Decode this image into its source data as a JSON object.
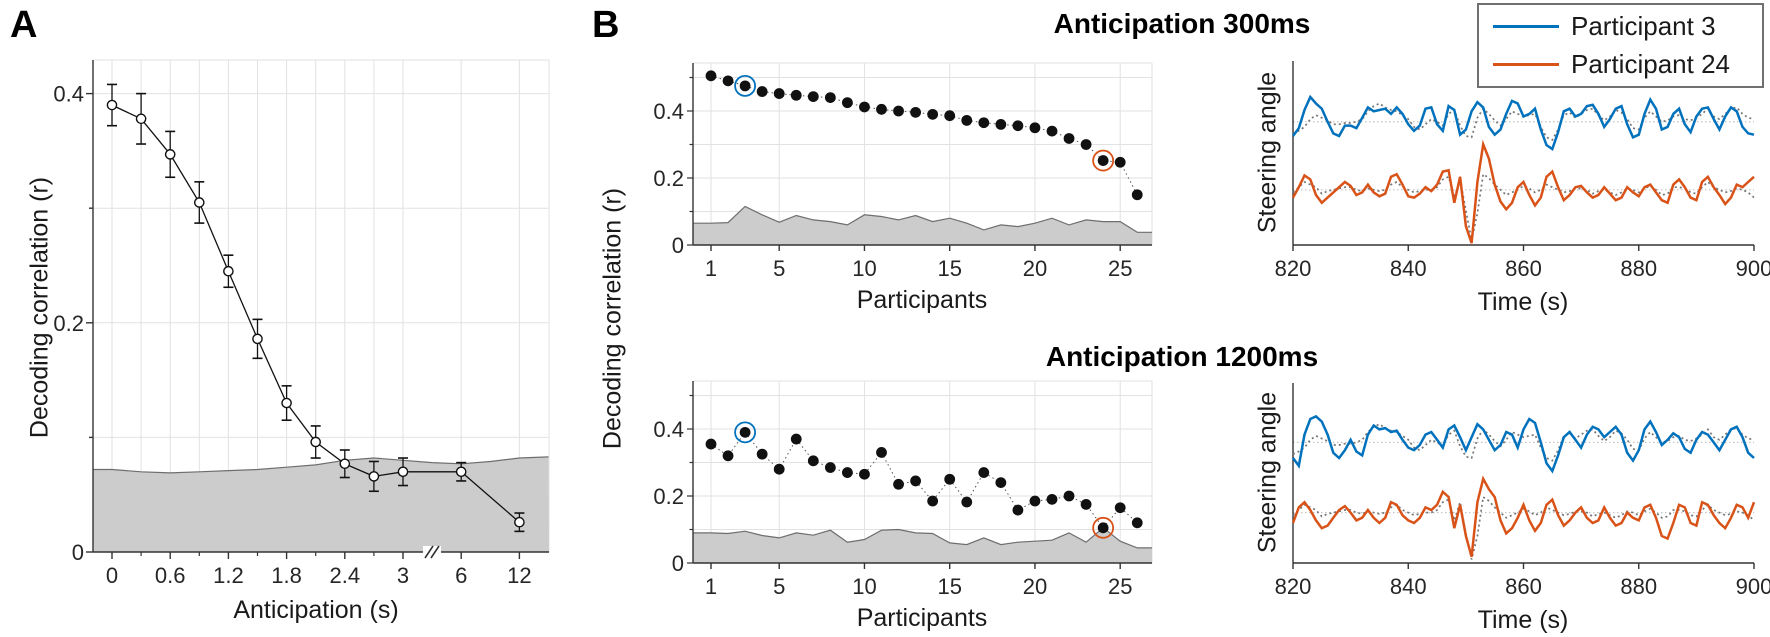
{
  "figure": {
    "panel_a_label": "A",
    "panel_b_label": "B",
    "b_shared_ylabel": "Decoding correlation (r)",
    "colors": {
      "blue": "#0072BD",
      "orange": "#D95319",
      "point_black": "#111111",
      "chance_fill": "#cccccc",
      "chance_edge": "#6e6e6e",
      "grid": "#e2e2e2",
      "axis": "#333333",
      "actual_dotted": "#757575",
      "baseline_dotted": "#c4c4c4"
    },
    "legend": {
      "items": [
        {
          "label": "Participant 3",
          "color": "#0072BD"
        },
        {
          "label": "Participant 24",
          "color": "#D95319"
        }
      ]
    }
  },
  "chart_data": [
    {
      "id": "panelA",
      "type": "line",
      "xlabel": "Anticipation (s)",
      "ylabel": "Decoding correlation (r)",
      "x": [
        0,
        0.3,
        0.6,
        0.9,
        1.2,
        1.5,
        1.8,
        2.1,
        2.4,
        2.7,
        3,
        6,
        12
      ],
      "y": [
        0.39,
        0.378,
        0.347,
        0.305,
        0.245,
        0.186,
        0.13,
        0.096,
        0.077,
        0.066,
        0.07,
        0.07,
        0.026
      ],
      "yerr": [
        0.018,
        0.022,
        0.02,
        0.018,
        0.014,
        0.017,
        0.015,
        0.014,
        0.012,
        0.013,
        0.012,
        0.008,
        0.008
      ],
      "xtick_labels": [
        "0",
        "0.6",
        "1.2",
        "1.8",
        "2.4",
        "3",
        "6",
        "12"
      ],
      "ytick_labels": [
        "0",
        "0.2",
        "0.4"
      ],
      "yticks": [
        0,
        0.2,
        0.4
      ],
      "ylim": [
        0,
        0.43
      ],
      "axis_break_between": [
        3,
        6
      ],
      "chance_u": [
        -0.196,
        0,
        0.3,
        0.6,
        0.9,
        1.2,
        1.5,
        1.8,
        2.1,
        2.4,
        2.7,
        3.0,
        3.3,
        3.6,
        3.9,
        4.2,
        4.5
      ],
      "chance_v": [
        0.072,
        0.072,
        0.07,
        0.069,
        0.07,
        0.071,
        0.072,
        0.074,
        0.076,
        0.08,
        0.082,
        0.08,
        0.078,
        0.077,
        0.079,
        0.082,
        0.083
      ]
    },
    {
      "id": "scatter300",
      "type": "scatter",
      "title": "Anticipation 300ms",
      "xlabel": "Participants",
      "x": [
        1,
        2,
        3,
        4,
        5,
        6,
        7,
        8,
        9,
        10,
        11,
        12,
        13,
        14,
        15,
        16,
        17,
        18,
        19,
        20,
        21,
        22,
        23,
        24,
        25,
        26
      ],
      "y": [
        0.505,
        0.49,
        0.475,
        0.458,
        0.452,
        0.447,
        0.443,
        0.44,
        0.425,
        0.412,
        0.405,
        0.4,
        0.396,
        0.39,
        0.386,
        0.372,
        0.365,
        0.36,
        0.356,
        0.35,
        0.34,
        0.318,
        0.3,
        0.252,
        0.247,
        0.15
      ],
      "chance": [
        0.065,
        0.067,
        0.115,
        0.09,
        0.068,
        0.088,
        0.075,
        0.07,
        0.06,
        0.09,
        0.085,
        0.075,
        0.088,
        0.07,
        0.08,
        0.065,
        0.045,
        0.06,
        0.055,
        0.065,
        0.08,
        0.06,
        0.075,
        0.07,
        0.07,
        0.038
      ],
      "highlight_blue": 3,
      "highlight_orange": 24,
      "xticks": [
        1,
        5,
        10,
        15,
        20,
        25
      ],
      "yticks": [
        0,
        0.2,
        0.4
      ],
      "ylim": [
        0,
        0.543
      ]
    },
    {
      "id": "scatter1200",
      "type": "scatter",
      "title": "Anticipation 1200ms",
      "xlabel": "Participants",
      "x": [
        1,
        2,
        3,
        4,
        5,
        6,
        7,
        8,
        9,
        10,
        11,
        12,
        13,
        14,
        15,
        16,
        17,
        18,
        19,
        20,
        21,
        22,
        23,
        24,
        25,
        26
      ],
      "y": [
        0.355,
        0.32,
        0.39,
        0.325,
        0.28,
        0.37,
        0.305,
        0.285,
        0.27,
        0.265,
        0.33,
        0.235,
        0.245,
        0.185,
        0.25,
        0.182,
        0.27,
        0.24,
        0.158,
        0.185,
        0.19,
        0.2,
        0.175,
        0.105,
        0.165,
        0.12
      ],
      "chance": [
        0.09,
        0.088,
        0.095,
        0.082,
        0.075,
        0.09,
        0.083,
        0.098,
        0.062,
        0.07,
        0.098,
        0.1,
        0.09,
        0.088,
        0.06,
        0.055,
        0.075,
        0.055,
        0.062,
        0.065,
        0.068,
        0.09,
        0.062,
        0.105,
        0.065,
        0.045
      ],
      "highlight_blue": 3,
      "highlight_orange": 24,
      "xticks": [
        1,
        5,
        10,
        15,
        20,
        25
      ],
      "yticks": [
        0,
        0.2,
        0.4
      ],
      "ylim": [
        0,
        0.543
      ]
    },
    {
      "id": "ts300",
      "type": "line-multi",
      "xlabel": "Time (s)",
      "ylabel": "Steering angle",
      "t_start": 820,
      "t_step": 1,
      "xticks": [
        820,
        840,
        860,
        880,
        900
      ],
      "series": [
        {
          "name": "participant3-actual",
          "style": "dotted",
          "baseline": 0.33,
          "values": [
            -0.45,
            -0.35,
            -0.2,
            0.1,
            0.25,
            0.15,
            0.05,
            -0.1,
            -0.1,
            -0.05,
            -0.05,
            0,
            0.1,
            0.4,
            0.6,
            0.7,
            0.55,
            0.45,
            0.4,
            0.25,
            0.1,
            -0.2,
            -0.3,
            -0.1,
            0.1,
            0,
            -0.15,
            0.3,
            0.45,
            -0.15,
            -0.55,
            -0.6,
            0.15,
            0.5,
            0.3,
            0.05,
            -0.15,
            0.1,
            0.4,
            0.3,
            0.2,
            0.25,
            0.3,
            -0.2,
            -0.6,
            -0.7,
            -0.3,
            0.25,
            0.35,
            0.15,
            0.3,
            0.45,
            0.5,
            0.25,
            0.05,
            0.2,
            0.45,
            0.35,
            0.1,
            -0.25,
            -0.3,
            0.15,
            0.4,
            0.2,
            0,
            0.05,
            0.2,
            0.25,
            0.1,
            0.05,
            0.15,
            0.3,
            0.5,
            0.2,
            0.1,
            0.3,
            0.5,
            0.55,
            0.3,
            0.15,
            0.1
          ]
        },
        {
          "name": "participant3-predicted",
          "style": "solid",
          "color_key": "blue",
          "baseline": 0.33,
          "values": [
            -0.55,
            -0.25,
            0.45,
            0.95,
            0.7,
            0.5,
            0,
            -0.45,
            -0.55,
            -0.15,
            -0.15,
            -0.25,
            0.15,
            0.55,
            0.4,
            0.45,
            0.5,
            0.3,
            0.55,
            0.3,
            -0.1,
            -0.35,
            -0.15,
            0.5,
            0.55,
            -0.1,
            -0.35,
            0.6,
            0.45,
            -0.5,
            -0.3,
            0.4,
            0.75,
            0.55,
            -0.2,
            -0.5,
            -0.3,
            0.3,
            0.8,
            0.7,
            0.2,
            0.3,
            0.5,
            -0.3,
            -0.9,
            -1.05,
            -0.4,
            0.4,
            0.5,
            0.2,
            0.3,
            0.6,
            0.65,
            0.3,
            -0.2,
            0.1,
            0.5,
            0.6,
            -0.1,
            -0.6,
            -0.5,
            0.3,
            0.85,
            0.5,
            -0.3,
            -0.2,
            0.3,
            0.5,
            -0.1,
            -0.4,
            0.2,
            0.5,
            0.55,
            0.1,
            -0.3,
            0.2,
            0.55,
            0.4,
            -0.2,
            -0.45,
            -0.5
          ]
        },
        {
          "name": "participant24-actual",
          "style": "dotted",
          "baseline": 0.7,
          "values": [
            -0.1,
            0.1,
            0.3,
            0.2,
            0.1,
            -0.15,
            -0.05,
            0,
            0.05,
            0.1,
            0.1,
            0,
            -0.05,
            0.05,
            0,
            -0.05,
            0,
            0.2,
            0.3,
            0.1,
            0,
            -0.1,
            -0.05,
            0,
            0,
            0.1,
            0.4,
            0.5,
            -0.3,
            0.4,
            -0.8,
            -1.95,
            -0.9,
            0.6,
            0.45,
            0.2,
            0,
            -0.2,
            -0.1,
            0,
            0.15,
            0.05,
            -0.1,
            0,
            0.2,
            0.1,
            0,
            -0.1,
            -0.05,
            0.05,
            0.05,
            0,
            -0.15,
            -0.05,
            0,
            -0.1,
            -0.2,
            -0.1,
            0.05,
            0,
            -0.1,
            0.05,
            0.15,
            0,
            -0.2,
            -0.15,
            0.1,
            0.1,
            0.05,
            -0.1,
            -0.15,
            0.1,
            0.3,
            0.1,
            0,
            -0.1,
            -0.05,
            0.05,
            0,
            -0.1,
            -0.3
          ]
        },
        {
          "name": "participant24-predicted",
          "style": "solid",
          "color_key": "orange",
          "baseline": 0.7,
          "values": [
            -0.3,
            0.1,
            0.55,
            0.4,
            -0.2,
            -0.5,
            -0.3,
            -0.1,
            0.1,
            0.3,
            0.15,
            -0.2,
            -0.1,
            0.2,
            -0.1,
            -0.25,
            -0.15,
            0.5,
            0.6,
            0.2,
            -0.25,
            -0.3,
            -0.15,
            0.1,
            -0.05,
            0.2,
            0.7,
            0.75,
            -0.5,
            0.5,
            -1.4,
            -2.05,
            0.3,
            1.75,
            1.2,
            0.2,
            -0.45,
            -0.75,
            -0.5,
            0.1,
            0.3,
            -0.2,
            -0.6,
            -0.3,
            0.5,
            0.7,
            0.1,
            -0.4,
            -0.2,
            0.1,
            0.15,
            -0.1,
            -0.3,
            -0.2,
            0.1,
            -0.15,
            -0.4,
            -0.3,
            0.1,
            -0.1,
            -0.25,
            0.1,
            0.2,
            -0.1,
            -0.4,
            -0.5,
            0.2,
            0.4,
            0.1,
            -0.3,
            -0.4,
            0.3,
            0.5,
            0.1,
            -0.2,
            -0.55,
            -0.3,
            0.2,
            0.1,
            0.3,
            0.5
          ]
        }
      ]
    },
    {
      "id": "ts1200",
      "type": "line-multi",
      "xlabel": "Time (s)",
      "ylabel": "Steering angle",
      "t_start": 820,
      "t_step": 1,
      "xticks": [
        820,
        840,
        860,
        880,
        900
      ],
      "series": [
        {
          "name": "participant3-actual",
          "style": "dotted",
          "baseline": 0.33,
          "values": [
            -0.45,
            -0.35,
            -0.2,
            0.1,
            0.25,
            0.15,
            0.05,
            -0.1,
            -0.1,
            -0.05,
            -0.05,
            0,
            0.1,
            0.4,
            0.6,
            0.7,
            0.55,
            0.45,
            0.4,
            0.25,
            0.1,
            -0.2,
            -0.3,
            -0.1,
            0.1,
            0,
            -0.15,
            0.3,
            0.45,
            -0.15,
            -0.55,
            -0.6,
            0.15,
            0.5,
            0.3,
            0.05,
            -0.15,
            0.1,
            0.4,
            0.3,
            0.2,
            0.25,
            0.3,
            -0.2,
            -0.6,
            -0.7,
            -0.3,
            0.25,
            0.35,
            0.15,
            0.3,
            0.45,
            0.5,
            0.25,
            0.05,
            0.2,
            0.45,
            0.35,
            0.1,
            -0.25,
            -0.3,
            0.15,
            0.4,
            0.2,
            0,
            0.05,
            0.2,
            0.25,
            0.1,
            0.05,
            0.15,
            0.3,
            0.5,
            0.2,
            0.1,
            0.3,
            0.5,
            0.55,
            0.3,
            0.15,
            0.1
          ]
        },
        {
          "name": "participant3-predicted",
          "style": "solid",
          "color_key": "blue",
          "baseline": 0.33,
          "values": [
            -0.6,
            -0.9,
            0.3,
            0.9,
            1,
            0.8,
            0.3,
            -0.4,
            -0.6,
            -0.3,
            0.1,
            -0.35,
            -0.5,
            0.3,
            0.65,
            0.5,
            0.55,
            0.4,
            0.45,
            0.1,
            -0.2,
            -0.3,
            -0.1,
            0.3,
            0.4,
            0.1,
            -0.2,
            0.5,
            0.65,
            0.2,
            -0.3,
            0.2,
            0.7,
            0.5,
            0.1,
            -0.3,
            -0.1,
            0.4,
            0.3,
            -0.2,
            0.5,
            0.9,
            0.75,
            0,
            -0.8,
            -1.1,
            -0.5,
            0.2,
            0.4,
            0.1,
            -0.2,
            0.3,
            0.6,
            0.5,
            0.2,
            0.4,
            0.6,
            0.3,
            -0.4,
            -0.7,
            -0.3,
            0.5,
            0.8,
            0.4,
            -0.1,
            0.1,
            0.35,
            0.2,
            -0.25,
            -0.4,
            0.1,
            0.4,
            0.3,
            0,
            -0.3,
            0.1,
            0.5,
            0.6,
            0.2,
            -0.4,
            -0.6
          ]
        },
        {
          "name": "participant24-actual",
          "style": "dotted",
          "baseline": 0.72,
          "values": [
            -0.1,
            0.1,
            0.3,
            0.2,
            0.1,
            -0.15,
            -0.05,
            0,
            0.05,
            0.1,
            0.1,
            0,
            -0.05,
            0.05,
            0,
            -0.05,
            0,
            0.2,
            0.3,
            0.1,
            0,
            -0.1,
            -0.05,
            0,
            0,
            0.1,
            0.4,
            0.5,
            -0.3,
            0.4,
            -0.8,
            -1.8,
            -0.9,
            0.6,
            0.45,
            0.2,
            0,
            -0.2,
            -0.1,
            0,
            0.15,
            0.05,
            -0.1,
            0,
            0.2,
            0.1,
            0,
            -0.1,
            -0.05,
            0.05,
            0.05,
            0,
            -0.15,
            -0.05,
            0,
            -0.1,
            -0.2,
            -0.1,
            0.05,
            0,
            -0.1,
            0.05,
            0.15,
            0,
            -0.2,
            -0.15,
            0.1,
            0.1,
            0.05,
            -0.1,
            -0.15,
            0.1,
            0.3,
            0.1,
            0,
            -0.1,
            -0.05,
            0.05,
            0,
            -0.1,
            -0.3
          ]
        },
        {
          "name": "participant24-predicted",
          "style": "solid",
          "color_key": "orange",
          "baseline": 0.72,
          "values": [
            -0.4,
            0.2,
            0.4,
            0.1,
            -0.3,
            -0.6,
            -0.5,
            -0.2,
            0.1,
            0.25,
            0,
            -0.3,
            -0.2,
            0.1,
            -0.2,
            -0.4,
            -0.2,
            0.4,
            0.3,
            -0.1,
            -0.3,
            -0.4,
            -0.2,
            0.2,
            0.1,
            0.3,
            0.8,
            0.6,
            -0.6,
            0.3,
            -0.9,
            -1.7,
            0.4,
            1.3,
            0.9,
            0.6,
            -0.3,
            -0.8,
            -0.6,
            -0.2,
            0.3,
            -0.3,
            -0.7,
            -0.4,
            0.3,
            0.5,
            -0.1,
            -0.5,
            -0.3,
            0,
            0.2,
            -0.2,
            -0.4,
            -0.3,
            0.2,
            -0.2,
            -0.5,
            -0.4,
            0,
            -0.2,
            -0.3,
            0.2,
            0.3,
            -0.2,
            -0.9,
            -1,
            -0.4,
            0.3,
            0.2,
            -0.4,
            -0.5,
            0.4,
            0.3,
            -0.1,
            -0.4,
            -0.6,
            -0.2,
            0.3,
            0.2,
            -0.2,
            0.4
          ]
        }
      ]
    }
  ]
}
